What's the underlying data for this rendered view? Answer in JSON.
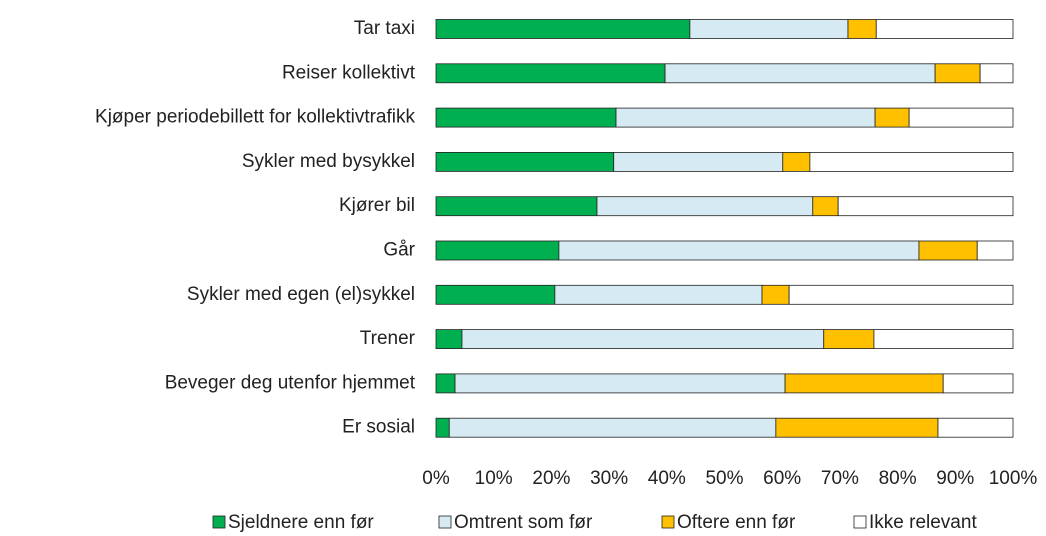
{
  "chart_data": {
    "type": "stacked_bar_horizontal",
    "categories": [
      "Tar taxi",
      "Reiser kollektivt",
      "Kjøper periodebillett for kollektivtrafikk",
      "Sykler med bysykkel",
      "Kjører bil",
      "Går",
      "Sykler med egen (el)sykkel",
      "Trener",
      "Beveger deg utenfor hjemmet",
      "Er sosial"
    ],
    "series": [
      {
        "name": "Sjeldnere enn før",
        "color": "#00b050",
        "values": [
          44.0,
          39.7,
          31.2,
          30.8,
          27.9,
          21.3,
          20.6,
          4.5,
          3.3,
          2.3
        ]
      },
      {
        "name": "Omtrent som før",
        "color": "#d5eaf2",
        "values": [
          27.4,
          46.8,
          44.9,
          29.3,
          37.4,
          62.4,
          35.9,
          62.7,
          57.2,
          56.6
        ]
      },
      {
        "name": "Oftere enn før",
        "color": "#ffc000",
        "values": [
          4.9,
          7.8,
          5.9,
          4.7,
          4.4,
          10.1,
          4.7,
          8.7,
          27.4,
          28.1
        ]
      },
      {
        "name": "Ikke relevant",
        "color": "#ffffff",
        "values": [
          23.7,
          5.7,
          18.0,
          35.2,
          30.3,
          6.2,
          38.8,
          24.1,
          12.1,
          13.0
        ]
      }
    ],
    "xlim": [
      0,
      100
    ],
    "xticks": [
      {
        "value": 0,
        "label": "0%"
      },
      {
        "value": 10,
        "label": "10%"
      },
      {
        "value": 20,
        "label": "20%"
      },
      {
        "value": 30,
        "label": "30%"
      },
      {
        "value": 40,
        "label": "40%"
      },
      {
        "value": 50,
        "label": "50%"
      },
      {
        "value": 60,
        "label": "60%"
      },
      {
        "value": 70,
        "label": "70%"
      },
      {
        "value": 80,
        "label": "80%"
      },
      {
        "value": 90,
        "label": "90%"
      },
      {
        "value": 100,
        "label": "100%"
      }
    ],
    "legend": "bottom"
  }
}
